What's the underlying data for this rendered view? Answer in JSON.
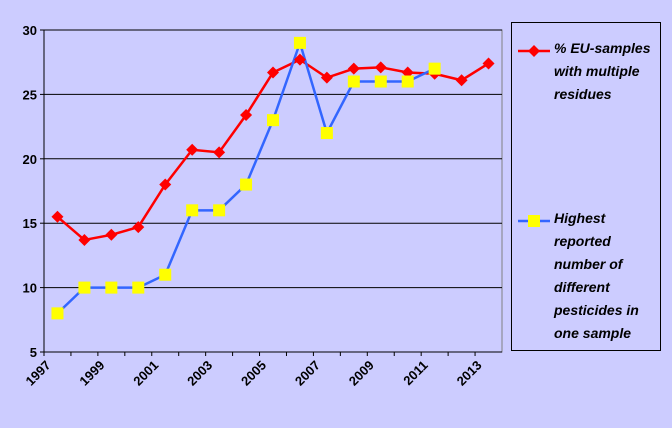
{
  "chart_data": {
    "type": "line",
    "categories": [
      "1997",
      null,
      "1999",
      null,
      "2001",
      null,
      "2003",
      null,
      "2005",
      null,
      "2007",
      null,
      "2009",
      null,
      "2011",
      null,
      "2013"
    ],
    "series": [
      {
        "name": "% EU-samples with multiple residues",
        "color": "#ff0000",
        "marker": "diamond",
        "marker_color": "#ff0000",
        "values": [
          15.5,
          13.7,
          14.1,
          14.7,
          18.0,
          20.7,
          20.5,
          23.4,
          26.7,
          27.7,
          26.3,
          27.0,
          27.1,
          26.7,
          26.6,
          26.1,
          27.4
        ]
      },
      {
        "name": "Highest reported number of different pesticides in one sample",
        "color": "#3366ff",
        "marker": "square",
        "marker_color": "#ffff00",
        "values": [
          8,
          10,
          10,
          10,
          11,
          16,
          16,
          18,
          23,
          29,
          22,
          26,
          26,
          26,
          27,
          null,
          null
        ]
      }
    ],
    "ylim": [
      5,
      30
    ],
    "yticks": [
      5,
      10,
      15,
      20,
      25,
      30
    ],
    "grid": true,
    "legend": "right"
  }
}
